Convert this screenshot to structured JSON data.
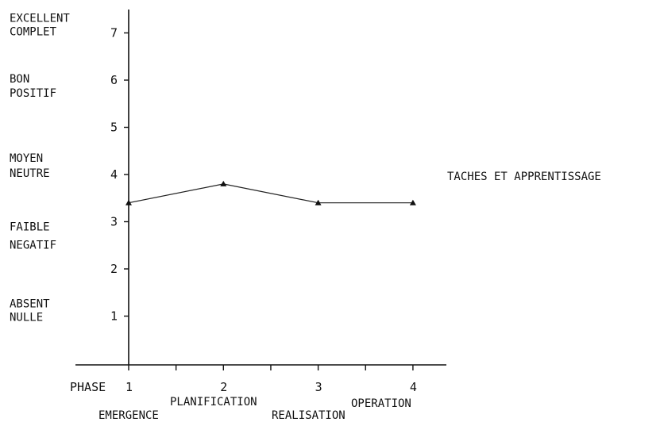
{
  "chart_data": {
    "type": "line",
    "x_prefix_label": "PHASE",
    "x": [
      1,
      2,
      3,
      4
    ],
    "phase_labels": [
      "EMERGENCE",
      "PLANIFICATION",
      "REALISATION",
      "OPERATION"
    ],
    "y_ticks": [
      1,
      2,
      3,
      4,
      5,
      6,
      7
    ],
    "ylim": [
      0,
      7.5
    ],
    "xlim": [
      0.5,
      4.8
    ],
    "y_category_labels": [
      {
        "y": 7,
        "lines": [
          "EXCELLENT",
          "COMPLET"
        ]
      },
      {
        "y": 6,
        "lines": [
          "BON",
          "POSITIF"
        ]
      },
      {
        "y": 4,
        "lines": [
          "MOYEN",
          "NEUTRE"
        ]
      },
      {
        "y": 3,
        "lines": [
          "FAIBLE",
          "NEGATIF"
        ]
      },
      {
        "y": 1,
        "lines": [
          "ABSENT",
          "NULLE"
        ]
      }
    ],
    "series": [
      {
        "name": "TACHES ET APPRENTISSAGE",
        "values": [
          3.4,
          3.8,
          3.4,
          3.4
        ]
      }
    ],
    "grid": false,
    "legend_placement": "right"
  }
}
